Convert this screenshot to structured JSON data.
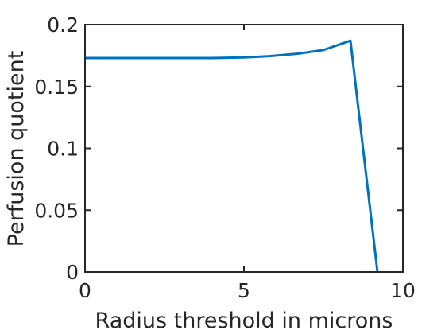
{
  "chart_data": {
    "type": "line",
    "title": "",
    "xlabel": "Radius threshold in microns",
    "ylabel": "Perfusion quotient",
    "xlim": [
      0,
      10
    ],
    "ylim": [
      0,
      0.2
    ],
    "grid": false,
    "legend": "none",
    "x_ticks": [
      0,
      5,
      10
    ],
    "x_tick_labels": [
      "0",
      "5",
      "10"
    ],
    "y_ticks": [
      0,
      0.05,
      0.1,
      0.15,
      0.2
    ],
    "y_tick_labels": [
      "0",
      "0.05",
      "0.1",
      "0.15",
      "0.2"
    ],
    "series": [
      {
        "color": "#0072BD",
        "x": [
          0,
          1,
          2,
          3,
          4,
          5,
          5.8,
          6.7,
          7.5,
          8.35,
          9.2
        ],
        "y": [
          0.173,
          0.173,
          0.173,
          0.173,
          0.173,
          0.1735,
          0.1745,
          0.1765,
          0.1795,
          0.187,
          0
        ]
      }
    ]
  }
}
